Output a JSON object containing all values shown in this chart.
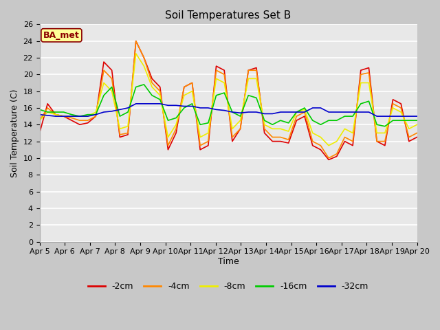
{
  "title": "Soil Temperatures Set B",
  "xlabel": "Time",
  "ylabel": "Soil Temperature (C)",
  "annotation": "BA_met",
  "ylim": [
    0,
    26
  ],
  "yticks": [
    0,
    2,
    4,
    6,
    8,
    10,
    12,
    14,
    16,
    18,
    20,
    22,
    24,
    26
  ],
  "x_labels": [
    "Apr 5",
    "Apr 6",
    "Apr 7",
    "Apr 8",
    "Apr 9",
    "Apr 10",
    "Apr 11",
    "Apr 12",
    "Apr 13",
    "Apr 14",
    "Apr 15",
    "Apr 16",
    "Apr 17",
    "Apr 18",
    "Apr 19",
    "Apr 20"
  ],
  "colors": {
    "-2cm": "#dd0000",
    "-4cm": "#ff8800",
    "-8cm": "#eeee00",
    "-16cm": "#00cc00",
    "-32cm": "#0000cc"
  },
  "fig_bg": "#c8c8c8",
  "plot_bg": "#e8e8e8",
  "grid_color": "#ffffff",
  "series": {
    "-2cm": [
      13.0,
      16.5,
      15.2,
      15.0,
      14.5,
      14.0,
      14.2,
      15.0,
      21.5,
      20.5,
      12.5,
      12.8,
      24.0,
      22.0,
      19.5,
      18.5,
      11.0,
      13.0,
      18.5,
      19.0,
      11.0,
      11.5,
      21.0,
      20.5,
      12.0,
      13.5,
      20.5,
      20.8,
      13.0,
      12.0,
      12.0,
      11.8,
      14.5,
      15.0,
      11.5,
      11.0,
      9.8,
      10.2,
      12.0,
      11.5,
      20.5,
      20.8,
      12.0,
      11.5,
      17.0,
      16.5,
      12.0,
      12.5
    ],
    "-4cm": [
      14.5,
      16.0,
      15.2,
      15.0,
      14.8,
      14.5,
      14.5,
      15.0,
      20.5,
      19.5,
      12.8,
      13.0,
      24.0,
      22.0,
      19.0,
      18.0,
      11.5,
      13.5,
      18.5,
      19.0,
      11.5,
      12.0,
      20.5,
      20.0,
      12.5,
      13.5,
      20.5,
      20.5,
      13.5,
      12.5,
      12.5,
      12.2,
      15.0,
      15.5,
      12.0,
      11.5,
      10.0,
      10.5,
      12.5,
      12.0,
      20.0,
      20.2,
      12.0,
      12.0,
      16.5,
      16.0,
      12.5,
      13.0
    ],
    "-8cm": [
      14.5,
      15.5,
      15.2,
      15.0,
      15.0,
      15.0,
      15.0,
      15.5,
      19.0,
      18.0,
      13.5,
      13.8,
      22.5,
      21.0,
      18.5,
      17.5,
      12.5,
      14.0,
      17.5,
      18.0,
      12.5,
      13.0,
      19.5,
      19.0,
      13.5,
      14.5,
      19.5,
      19.5,
      14.0,
      13.5,
      13.5,
      13.2,
      15.5,
      15.8,
      13.0,
      12.5,
      11.5,
      12.0,
      13.5,
      13.0,
      19.0,
      19.0,
      13.0,
      13.0,
      16.0,
      15.5,
      13.5,
      14.0
    ],
    "-16cm": [
      15.8,
      15.5,
      15.5,
      15.5,
      15.2,
      15.0,
      15.2,
      15.2,
      17.5,
      18.5,
      15.0,
      15.5,
      18.5,
      18.8,
      17.5,
      17.0,
      14.5,
      14.8,
      16.0,
      16.5,
      14.0,
      14.2,
      17.5,
      17.8,
      15.5,
      15.0,
      17.5,
      17.2,
      14.5,
      14.0,
      14.5,
      14.2,
      15.5,
      16.0,
      14.5,
      14.0,
      14.5,
      14.5,
      15.0,
      15.0,
      16.5,
      16.8,
      14.0,
      13.8,
      14.5,
      14.5,
      14.5,
      14.5
    ],
    "-32cm": [
      15.2,
      15.1,
      15.0,
      15.0,
      15.0,
      15.0,
      15.0,
      15.2,
      15.5,
      15.6,
      15.8,
      16.0,
      16.5,
      16.5,
      16.5,
      16.5,
      16.3,
      16.3,
      16.2,
      16.2,
      16.0,
      16.0,
      15.8,
      15.7,
      15.5,
      15.4,
      15.5,
      15.5,
      15.3,
      15.3,
      15.5,
      15.5,
      15.5,
      15.5,
      16.0,
      16.0,
      15.5,
      15.5,
      15.5,
      15.5,
      15.5,
      15.5,
      15.0,
      15.0,
      15.0,
      15.0,
      15.0,
      15.0
    ]
  },
  "title_fontsize": 11,
  "axis_label_fontsize": 9,
  "tick_fontsize": 8,
  "legend_fontsize": 9,
  "linewidth": 1.2
}
